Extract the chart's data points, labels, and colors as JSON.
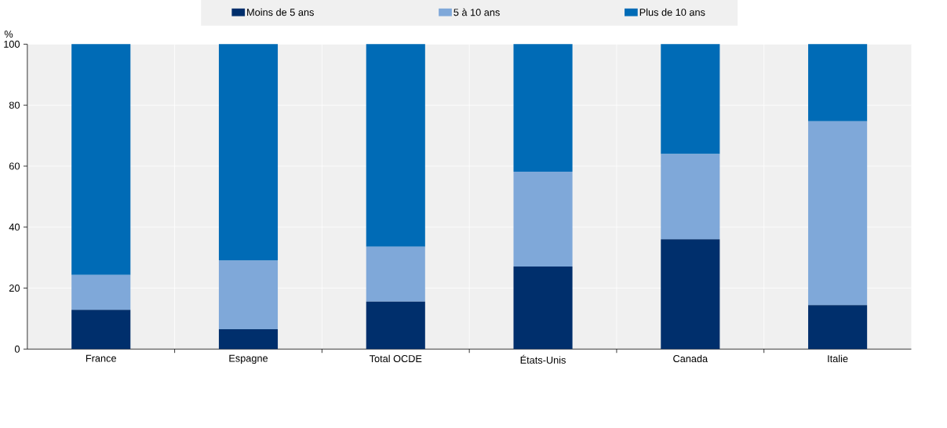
{
  "chart_data": {
    "type": "bar",
    "stacked": true,
    "ylabel": "%",
    "categories": [
      "France",
      "Espagne",
      "Total OCDE",
      "États-Unis",
      "Canada",
      "Italie"
    ],
    "series": [
      {
        "name": "Moins de 5 ans",
        "color": "#002f6c",
        "values": [
          12.9,
          6.5,
          15.6,
          27.1,
          36.0,
          14.4
        ]
      },
      {
        "name": "5 à 10 ans",
        "color": "#7fa8d9",
        "values": [
          11.4,
          22.5,
          18.0,
          31.1,
          28.0,
          60.3
        ]
      },
      {
        "name": "Plus de 10 ans",
        "color": "#006bb6",
        "values": [
          75.7,
          71.0,
          66.4,
          41.8,
          36.0,
          25.3
        ]
      }
    ],
    "ylim": [
      0,
      100
    ],
    "yticks": [
      0,
      20,
      40,
      60,
      80,
      100
    ],
    "grid": true,
    "legend": "top"
  }
}
